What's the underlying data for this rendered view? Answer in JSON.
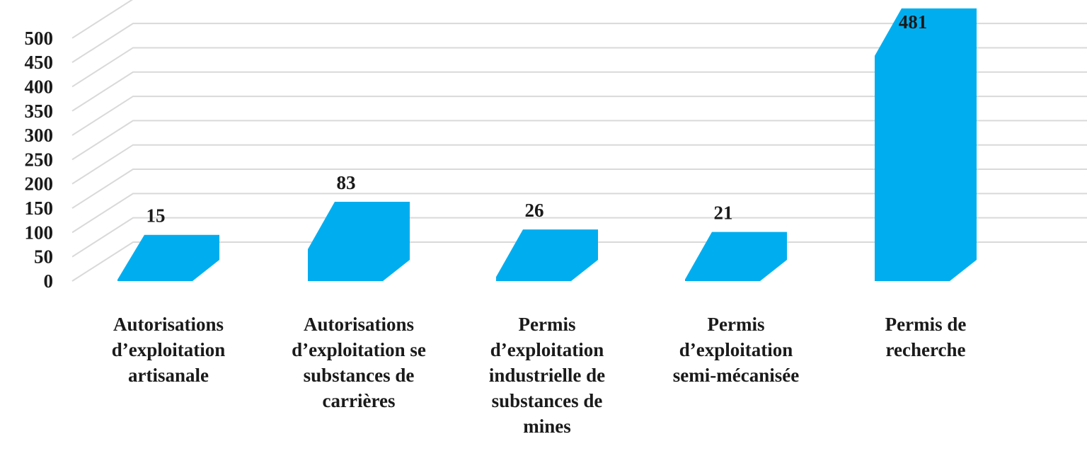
{
  "chart_data": {
    "type": "bar",
    "style": "3d",
    "title": "",
    "xlabel": "",
    "ylabel": "",
    "ylim": [
      0,
      500
    ],
    "yticks": [
      "0",
      "50",
      "100",
      "150",
      "200",
      "250",
      "300",
      "350",
      "400",
      "450",
      "500"
    ],
    "grid": true,
    "categories": [
      {
        "lines": [
          "Autorisations",
          "d’exploitation",
          "artisanale"
        ]
      },
      {
        "lines": [
          "Autorisations",
          "d’exploitation se",
          "substances de",
          "carrières"
        ]
      },
      {
        "lines": [
          "Permis",
          "d’exploitation",
          "industrielle de",
          "substances de",
          "mines"
        ]
      },
      {
        "lines": [
          "Permis",
          "d’exploitation",
          "semi-mécanisée"
        ]
      },
      {
        "lines": [
          "Permis de",
          "recherche"
        ]
      }
    ],
    "values": [
      15,
      83,
      26,
      21,
      481
    ],
    "data_labels": [
      "15",
      "83",
      "26",
      "21",
      "481"
    ],
    "colors": {
      "bar": "#00aeef",
      "grid": "#d9d9d9"
    }
  }
}
